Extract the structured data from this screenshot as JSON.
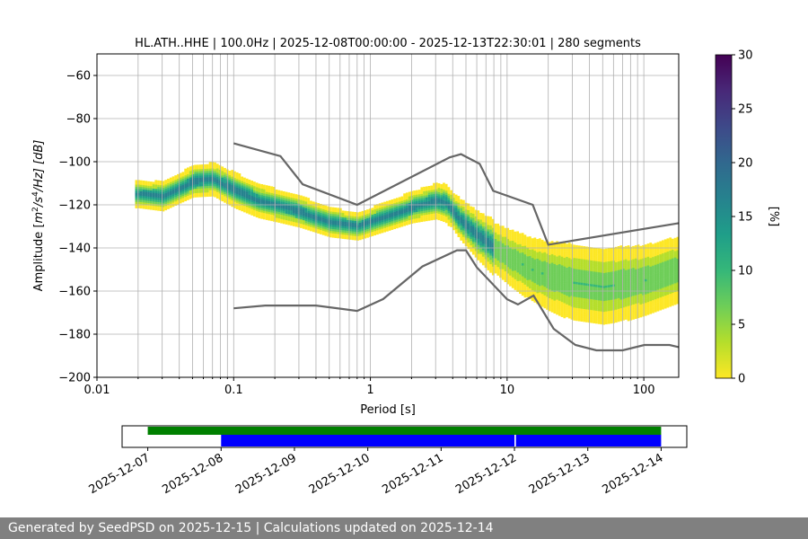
{
  "chart_data": {
    "type": "heatmap",
    "title": "HL.ATH..HHE | 100.0Hz | 2025-12-08T00:00:00 - 2025-12-13T22:30:01 | 280 segments",
    "xlabel": "Period [s]",
    "ylabel_parts": [
      "Amplitude [",
      "m",
      "2",
      "/",
      "s",
      "4",
      "/Hz] [dB]"
    ],
    "xscale": "log",
    "xlim": [
      0.01,
      180
    ],
    "ylim": [
      -200,
      -50
    ],
    "grid": true,
    "x_ticks": [
      {
        "value": 0.01,
        "label": "0.01"
      },
      {
        "value": 0.1,
        "label": "0.1"
      },
      {
        "value": 1,
        "label": "1"
      },
      {
        "value": 10,
        "label": "10"
      },
      {
        "value": 100,
        "label": "100"
      }
    ],
    "y_ticks": [
      {
        "value": -60,
        "label": "−60"
      },
      {
        "value": -80,
        "label": "−80"
      },
      {
        "value": -100,
        "label": "−100"
      },
      {
        "value": -120,
        "label": "−120"
      },
      {
        "value": -140,
        "label": "−140"
      },
      {
        "value": -160,
        "label": "−160"
      },
      {
        "value": -180,
        "label": "−180"
      },
      {
        "value": -200,
        "label": "−200"
      }
    ],
    "colorbar": {
      "label": "[%]",
      "range": [
        0,
        30
      ],
      "ticks": [
        {
          "value": 0,
          "label": "0"
        },
        {
          "value": 5,
          "label": "5"
        },
        {
          "value": 10,
          "label": "10"
        },
        {
          "value": 15,
          "label": "15"
        },
        {
          "value": 20,
          "label": "20"
        },
        {
          "value": 25,
          "label": "25"
        },
        {
          "value": 30,
          "label": "30"
        }
      ],
      "colors": [
        "#fde725",
        "#b5de2b",
        "#6ece58",
        "#35b779",
        "#1f9e89",
        "#26828e",
        "#31688e",
        "#3e4989",
        "#482878",
        "#440154"
      ]
    },
    "psd_mode": [
      [
        0.02,
        -115
      ],
      [
        0.03,
        -116
      ],
      [
        0.04,
        -112
      ],
      [
        0.05,
        -109
      ],
      [
        0.07,
        -108
      ],
      [
        0.1,
        -113
      ],
      [
        0.15,
        -118
      ],
      [
        0.2,
        -120
      ],
      [
        0.3,
        -123
      ],
      [
        0.5,
        -128
      ],
      [
        0.8,
        -130
      ],
      [
        1.2,
        -126
      ],
      [
        2.0,
        -121
      ],
      [
        3.0,
        -118
      ],
      [
        3.5,
        -119
      ],
      [
        4.5,
        -127
      ],
      [
        6.0,
        -134
      ],
      [
        8.0,
        -140
      ],
      [
        10,
        -144
      ],
      [
        15,
        -150
      ],
      [
        20,
        -153
      ],
      [
        30,
        -156
      ],
      [
        50,
        -158
      ],
      [
        100,
        -155
      ],
      [
        180,
        -150
      ]
    ],
    "psd_spread": [
      [
        0.02,
        8
      ],
      [
        0.05,
        9
      ],
      [
        0.1,
        10
      ],
      [
        0.3,
        9
      ],
      [
        0.8,
        8
      ],
      [
        2,
        9
      ],
      [
        4,
        11
      ],
      [
        8,
        16
      ],
      [
        15,
        20
      ],
      [
        30,
        24
      ],
      [
        60,
        24
      ],
      [
        100,
        22
      ],
      [
        180,
        21
      ]
    ],
    "nhnm": [
      [
        0.1,
        -91.5
      ],
      [
        0.22,
        -97.4
      ],
      [
        0.32,
        -110.5
      ],
      [
        0.8,
        -120
      ],
      [
        3.8,
        -98
      ],
      [
        4.6,
        -96.5
      ],
      [
        6.3,
        -101
      ],
      [
        7.9,
        -113.5
      ],
      [
        15.4,
        -120
      ],
      [
        20,
        -138.5
      ],
      [
        180,
        -128.5
      ]
    ],
    "nlnm": [
      [
        0.1,
        -168
      ],
      [
        0.17,
        -166.7
      ],
      [
        0.4,
        -166.7
      ],
      [
        0.8,
        -169.2
      ],
      [
        1.24,
        -163.7
      ],
      [
        2.4,
        -148.6
      ],
      [
        4.3,
        -141.1
      ],
      [
        5.0,
        -141.1
      ],
      [
        6.0,
        -149
      ],
      [
        10,
        -163.8
      ],
      [
        12,
        -166.2
      ],
      [
        15.6,
        -162.1
      ],
      [
        21.9,
        -177.5
      ],
      [
        31.6,
        -185
      ],
      [
        45,
        -187.5
      ],
      [
        70,
        -187.5
      ],
      [
        101,
        -185
      ],
      [
        154,
        -185
      ],
      [
        180,
        -186
      ]
    ]
  },
  "availability": {
    "date_labels": [
      "2025-12-07",
      "2025-12-08",
      "2025-12-09",
      "2025-12-10",
      "2025-12-11",
      "2025-12-12",
      "2025-12-13",
      "2025-12-14"
    ],
    "range_days": [
      -0.35,
      7.35
    ],
    "data_bar": {
      "color": "#008000",
      "start_day": 0.0,
      "end_day": 7.0
    },
    "psd_bars": {
      "color": "#0000ff",
      "segments": [
        [
          1.0,
          5.0
        ],
        [
          5.02,
          7.0
        ]
      ]
    }
  },
  "footer": "Generated by SeedPSD on 2025-12-15 | Calculations updated on 2025-12-14"
}
